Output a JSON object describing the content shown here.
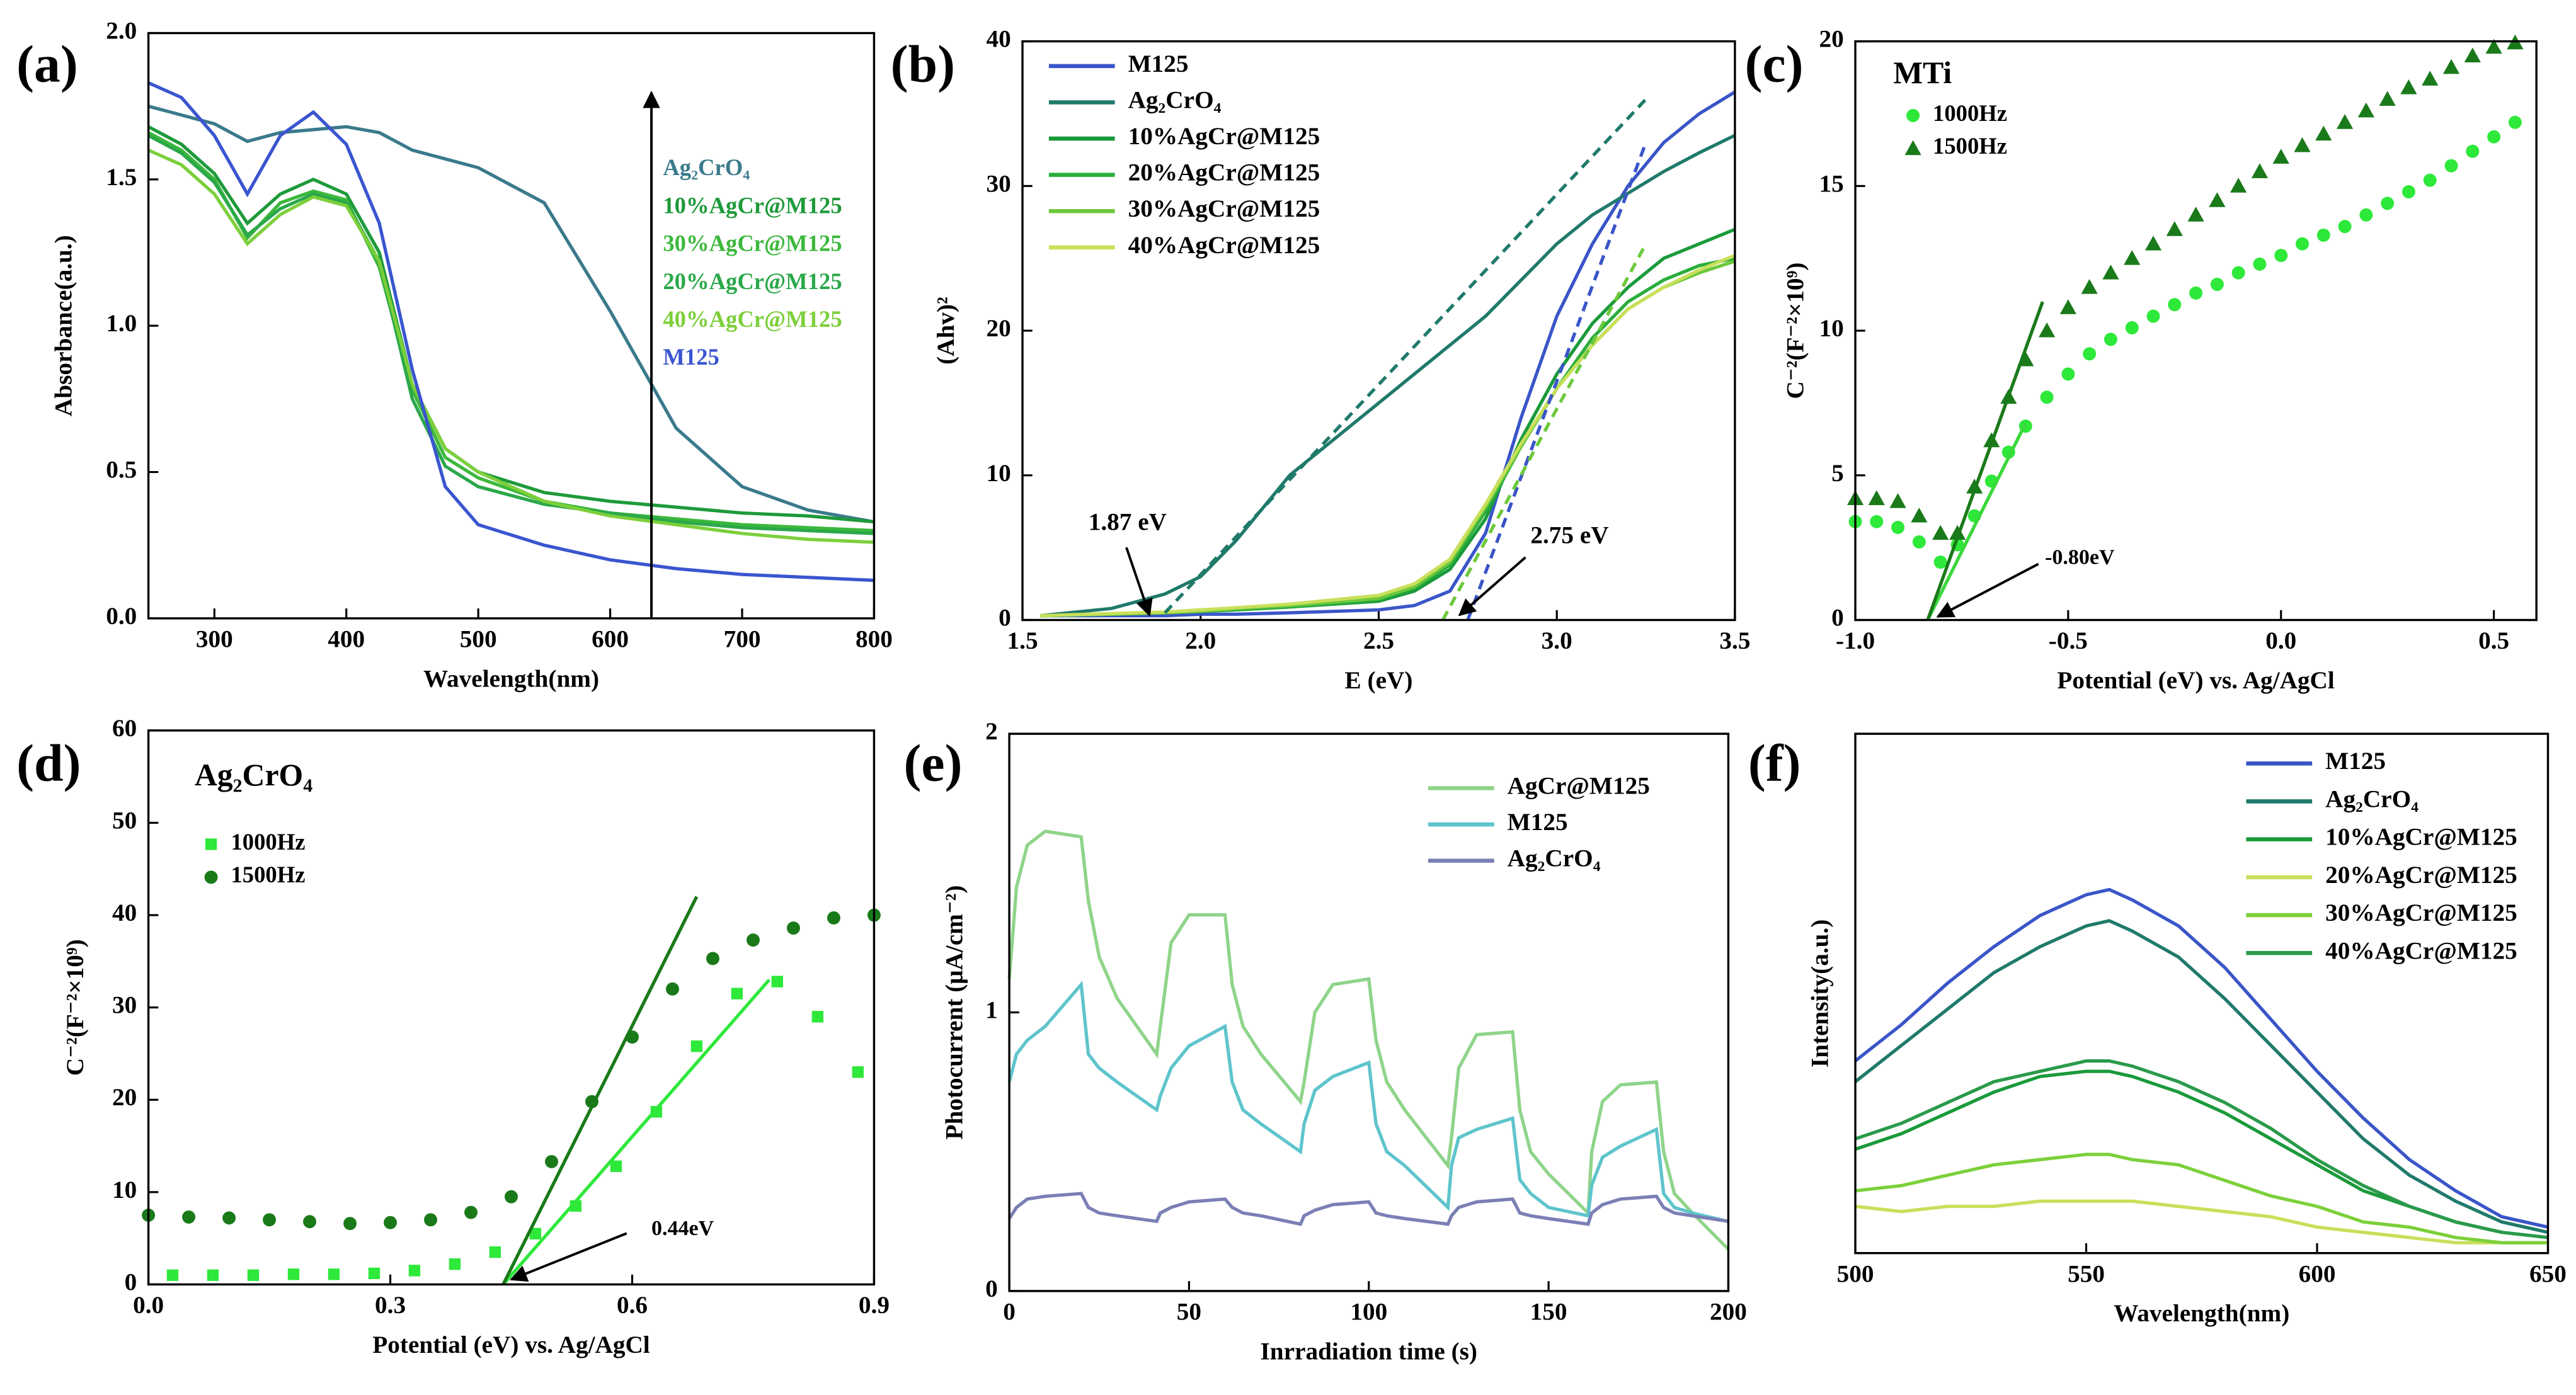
{
  "chart_data": [
    {
      "type": "line",
      "panel": "(a)",
      "xlabel": "Wavelength(nm)",
      "ylabel": "Absorbance(a.u.)",
      "xlim": [
        250,
        800
      ],
      "xticks": [
        300,
        400,
        500,
        600,
        700,
        800
      ],
      "ylim": [
        0,
        2
      ],
      "yticks": [
        {
          "value": 0,
          "label": "0.0"
        },
        0.5,
        {
          "value": 1,
          "label": "1.0"
        },
        1.5,
        {
          "value": 2,
          "label": "2.0"
        }
      ],
      "x": [
        250,
        275,
        300,
        325,
        350,
        375,
        400,
        425,
        450,
        475,
        500,
        550,
        600,
        650,
        700,
        750,
        800
      ],
      "series": [
        {
          "name": "Ag₂CrO₄",
          "color": "#3a7a8c",
          "values": [
            1.75,
            1.72,
            1.69,
            1.63,
            1.66,
            1.67,
            1.68,
            1.66,
            1.6,
            1.57,
            1.54,
            1.42,
            1.05,
            0.65,
            0.45,
            0.37,
            0.33
          ]
        },
        {
          "name": "10%AgCr@M125",
          "color": "#1e9a3a",
          "values": [
            1.68,
            1.62,
            1.52,
            1.35,
            1.45,
            1.5,
            1.45,
            1.25,
            0.8,
            0.58,
            0.5,
            0.43,
            0.4,
            0.38,
            0.36,
            0.35,
            0.33
          ]
        },
        {
          "name": "30%AgCr@M125",
          "color": "#3cb83c",
          "values": [
            1.66,
            1.6,
            1.5,
            1.3,
            1.42,
            1.46,
            1.43,
            1.2,
            0.78,
            0.55,
            0.48,
            0.4,
            0.36,
            0.34,
            0.32,
            0.31,
            0.3
          ]
        },
        {
          "name": "20%AgCr@M125",
          "color": "#2aa84a",
          "values": [
            1.65,
            1.59,
            1.49,
            1.31,
            1.4,
            1.45,
            1.42,
            1.22,
            0.75,
            0.52,
            0.45,
            0.39,
            0.36,
            0.33,
            0.31,
            0.3,
            0.29
          ]
        },
        {
          "name": "40%AgCr@M125",
          "color": "#7ccf3a",
          "values": [
            1.6,
            1.55,
            1.45,
            1.28,
            1.38,
            1.44,
            1.41,
            1.22,
            0.8,
            0.58,
            0.5,
            0.4,
            0.35,
            0.32,
            0.29,
            0.27,
            0.26
          ]
        },
        {
          "name": "M125",
          "color": "#3a55d0",
          "values": [
            1.83,
            1.78,
            1.65,
            1.45,
            1.65,
            1.73,
            1.62,
            1.35,
            0.85,
            0.45,
            0.32,
            0.25,
            0.2,
            0.17,
            0.15,
            0.14,
            0.13
          ]
        }
      ]
    },
    {
      "type": "line",
      "panel": "(b)",
      "xlabel": "E (eV)",
      "ylabel": "(Ahv)²",
      "xlim": [
        1.5,
        3.5
      ],
      "xticks": [
        1.5,
        {
          "value": 2,
          "label": "2.0"
        },
        2.5,
        {
          "value": 3,
          "label": "3.0"
        },
        3.5
      ],
      "ylim": [
        0,
        40
      ],
      "yticks": [
        0,
        10,
        20,
        30,
        40
      ],
      "x": [
        1.55,
        1.75,
        1.9,
        2.0,
        2.1,
        2.25,
        2.5,
        2.6,
        2.7,
        2.8,
        2.9,
        3.0,
        3.1,
        3.2,
        3.3,
        3.4,
        3.5
      ],
      "series": [
        {
          "name": "M125",
          "color": "#3a55c8",
          "values": [
            0.3,
            0.3,
            0.3,
            0.4,
            0.4,
            0.5,
            0.7,
            1,
            2,
            6,
            14,
            21,
            26,
            30,
            33,
            35,
            36.5
          ]
        },
        {
          "name": "Ag₂CrO₄",
          "color": "#1f7a6a",
          "values": [
            0.3,
            0.8,
            1.8,
            3,
            5.5,
            10,
            15,
            17,
            19,
            21,
            23.5,
            26,
            28,
            29.5,
            31,
            32.3,
            33.5
          ]
        },
        {
          "name": "10%AgCr@M125",
          "color": "#1a9a3a",
          "values": [
            0.3,
            0.4,
            0.5,
            0.6,
            0.7,
            0.9,
            1.3,
            2,
            3.5,
            7,
            12.5,
            17,
            20.5,
            23,
            25,
            26,
            27
          ]
        },
        {
          "name": "20%AgCr@M125",
          "color": "#2aae3c",
          "values": [
            0.3,
            0.4,
            0.5,
            0.6,
            0.7,
            0.9,
            1.4,
            2.2,
            3.8,
            7.5,
            12,
            16,
            19.5,
            22,
            23.5,
            24.5,
            25
          ]
        },
        {
          "name": "30%AgCr@M125",
          "color": "#6cc83c",
          "values": [
            0.3,
            0.4,
            0.5,
            0.6,
            0.8,
            1,
            1.5,
            2.3,
            4,
            7.8,
            12,
            16,
            19,
            21.5,
            23,
            24,
            24.8
          ]
        },
        {
          "name": "40%AgCr@M125",
          "color": "#c8e05a",
          "values": [
            0.3,
            0.45,
            0.55,
            0.7,
            0.85,
            1.1,
            1.7,
            2.5,
            4.2,
            8,
            12.2,
            16,
            19,
            21.5,
            23,
            24.2,
            25.2
          ]
        }
      ],
      "fits": [
        {
          "color": "#1f7a6a",
          "linestyle": "dashed",
          "x": [
            1.9,
            3.25
          ],
          "values": [
            0.5,
            36
          ]
        },
        {
          "color": "#3a55c8",
          "linestyle": "dashed",
          "x": [
            2.75,
            3.25
          ],
          "values": [
            0,
            33
          ]
        },
        {
          "color": "#6cc83c",
          "linestyle": "dashed",
          "x": [
            2.68,
            3.25
          ],
          "values": [
            0,
            26
          ]
        }
      ],
      "annotations": [
        "1.87 eV",
        "2.75 eV"
      ]
    },
    {
      "type": "scatter",
      "panel": "(c)",
      "title": "MTi",
      "xlabel": "Potential (eV) vs. Ag/AgCl",
      "ylabel": "C⁻²(F⁻²×10⁹)",
      "xlim": [
        -1,
        0.6
      ],
      "xticks": [
        {
          "value": -1,
          "label": "-1.0"
        },
        -0.5,
        {
          "value": 0,
          "label": "0.0"
        },
        0.5
      ],
      "ylim": [
        0,
        20
      ],
      "yticks": [
        0,
        5,
        10,
        15,
        20
      ],
      "series": [
        {
          "name": "1000Hz",
          "color": "#2ee83a",
          "marker": "circle",
          "x": [
            -1,
            -0.95,
            -0.9,
            -0.85,
            -0.8,
            -0.76,
            -0.72,
            -0.68,
            -0.64,
            -0.6,
            -0.55,
            -0.5,
            -0.45,
            -0.4,
            -0.35,
            -0.3,
            -0.25,
            -0.2,
            -0.15,
            -0.1,
            -0.05,
            0,
            0.05,
            0.1,
            0.15,
            0.2,
            0.25,
            0.3,
            0.35,
            0.4,
            0.45,
            0.5,
            0.55
          ],
          "values": [
            3.4,
            3.4,
            3.2,
            2.7,
            2,
            2.6,
            3.6,
            4.8,
            5.8,
            6.7,
            7.7,
            8.5,
            9.2,
            9.7,
            10.1,
            10.5,
            10.9,
            11.3,
            11.6,
            12,
            12.3,
            12.6,
            13,
            13.3,
            13.6,
            14,
            14.4,
            14.8,
            15.2,
            15.7,
            16.2,
            16.7,
            17.2
          ]
        },
        {
          "name": "1500Hz",
          "color": "#1a7a1a",
          "marker": "triangle",
          "x": [
            -1,
            -0.95,
            -0.9,
            -0.85,
            -0.8,
            -0.76,
            -0.72,
            -0.68,
            -0.64,
            -0.6,
            -0.55,
            -0.5,
            -0.45,
            -0.4,
            -0.35,
            -0.3,
            -0.25,
            -0.2,
            -0.15,
            -0.1,
            -0.05,
            0,
            0.05,
            0.1,
            0.15,
            0.2,
            0.25,
            0.3,
            0.35,
            0.4,
            0.45,
            0.5,
            0.55
          ],
          "values": [
            4.2,
            4.2,
            4.1,
            3.6,
            3,
            3,
            4.6,
            6.2,
            7.7,
            9,
            10,
            10.8,
            11.5,
            12,
            12.5,
            13,
            13.5,
            14,
            14.5,
            15,
            15.5,
            16,
            16.4,
            16.8,
            17.2,
            17.6,
            18,
            18.4,
            18.7,
            19.1,
            19.5,
            19.8,
            19.95
          ]
        }
      ],
      "fits": [
        {
          "color": "#3ad83a",
          "linestyle": "solid",
          "x": [
            -0.83,
            -0.6
          ],
          "values": [
            0,
            6.8
          ]
        },
        {
          "color": "#1a7a1a",
          "linestyle": "solid",
          "x": [
            -0.83,
            -0.56
          ],
          "values": [
            0,
            11
          ]
        }
      ],
      "annotations": [
        "-0.80eV"
      ]
    },
    {
      "type": "scatter",
      "panel": "(d)",
      "title": "Ag₂CrO₄",
      "xlabel": "Potential (eV) vs. Ag/AgCl",
      "ylabel": "C⁻²(F⁻²×10⁹)",
      "xlim": [
        0,
        0.9
      ],
      "xticks": [
        {
          "value": 0,
          "label": "0.0"
        },
        0.3,
        0.6,
        0.9
      ],
      "ylim": [
        0,
        60
      ],
      "yticks": [
        0,
        10,
        20,
        30,
        40,
        50,
        60
      ],
      "series": [
        {
          "name": "1000Hz",
          "color": "#2ee83a",
          "marker": "square",
          "x": [
            0.03,
            0.08,
            0.13,
            0.18,
            0.23,
            0.28,
            0.33,
            0.38,
            0.43,
            0.48,
            0.53,
            0.58,
            0.63,
            0.68,
            0.73,
            0.78,
            0.83,
            0.88
          ],
          "values": [
            1,
            1,
            1,
            1.1,
            1.1,
            1.2,
            1.5,
            2.2,
            3.5,
            5.5,
            8.5,
            12.8,
            18.7,
            25.8,
            31.5,
            32.8,
            29,
            23
          ]
        },
        {
          "name": "1500Hz",
          "color": "#1a7a1a",
          "marker": "circle",
          "x": [
            0,
            0.05,
            0.1,
            0.15,
            0.2,
            0.25,
            0.3,
            0.35,
            0.4,
            0.45,
            0.5,
            0.55,
            0.6,
            0.65,
            0.7,
            0.75,
            0.8,
            0.85,
            0.9
          ],
          "values": [
            7.5,
            7.3,
            7.2,
            7,
            6.8,
            6.6,
            6.7,
            7,
            7.8,
            9.5,
            13.3,
            19.8,
            26.8,
            32,
            35.3,
            37.3,
            38.6,
            39.7,
            40
          ]
        }
      ],
      "fits": [
        {
          "color": "#2ee83a",
          "linestyle": "solid",
          "x": [
            0.44,
            0.77
          ],
          "values": [
            0,
            33
          ]
        },
        {
          "color": "#1a7a1a",
          "linestyle": "solid",
          "x": [
            0.44,
            0.68
          ],
          "values": [
            0,
            42
          ]
        }
      ],
      "annotations": [
        "0.44eV"
      ]
    },
    {
      "type": "line",
      "panel": "(e)",
      "xlabel": "Inrradiation time (s)",
      "ylabel": "Photocurrent (μA/cm⁻²)",
      "xlim": [
        0,
        200
      ],
      "xticks": [
        0,
        50,
        100,
        150,
        200
      ],
      "ylim": [
        0,
        2
      ],
      "yticks": [
        0,
        1,
        2
      ],
      "x": [
        0,
        2,
        5,
        10,
        20,
        22,
        25,
        30,
        41,
        42,
        45,
        50,
        60,
        62,
        65,
        70,
        81,
        82,
        85,
        90,
        100,
        102,
        105,
        110,
        122,
        123,
        125,
        130,
        140,
        142,
        145,
        150,
        161,
        162,
        165,
        170,
        180,
        182,
        185,
        190,
        200
      ],
      "series": [
        {
          "name": "AgCr@M125",
          "color": "#8fd48a",
          "values": [
            1.12,
            1.45,
            1.6,
            1.65,
            1.63,
            1.4,
            1.2,
            1.05,
            0.85,
            0.95,
            1.25,
            1.35,
            1.35,
            1.1,
            0.95,
            0.85,
            0.68,
            0.75,
            1,
            1.1,
            1.12,
            0.9,
            0.75,
            0.65,
            0.45,
            0.55,
            0.8,
            0.92,
            0.93,
            0.65,
            0.5,
            0.42,
            0.28,
            0.5,
            0.68,
            0.74,
            0.75,
            0.5,
            0.35,
            0.28,
            0.15
          ]
        },
        {
          "name": "M125",
          "color": "#5ec4cc",
          "values": [
            0.75,
            0.85,
            0.9,
            0.95,
            1.1,
            0.85,
            0.8,
            0.75,
            0.65,
            0.7,
            0.8,
            0.88,
            0.95,
            0.75,
            0.65,
            0.6,
            0.5,
            0.6,
            0.72,
            0.77,
            0.82,
            0.6,
            0.5,
            0.45,
            0.3,
            0.45,
            0.55,
            0.58,
            0.62,
            0.4,
            0.35,
            0.3,
            0.27,
            0.38,
            0.48,
            0.52,
            0.58,
            0.35,
            0.3,
            0.28,
            0.25
          ]
        },
        {
          "name": "Ag₂CrO₄",
          "color": "#7a7fb5",
          "values": [
            0.26,
            0.3,
            0.33,
            0.34,
            0.35,
            0.3,
            0.28,
            0.27,
            0.25,
            0.28,
            0.3,
            0.32,
            0.33,
            0.3,
            0.28,
            0.27,
            0.24,
            0.27,
            0.29,
            0.31,
            0.32,
            0.28,
            0.27,
            0.26,
            0.24,
            0.27,
            0.3,
            0.32,
            0.33,
            0.28,
            0.27,
            0.26,
            0.24,
            0.28,
            0.31,
            0.33,
            0.34,
            0.3,
            0.28,
            0.27,
            0.25
          ]
        }
      ]
    },
    {
      "type": "line",
      "panel": "(f)",
      "xlabel": "Wavelength(nm)",
      "ylabel": "Intensity(a.u.)",
      "xlim": [
        500,
        650
      ],
      "xticks": [
        500,
        550,
        600,
        650
      ],
      "ylim": [
        0,
        100
      ],
      "x": [
        500,
        510,
        520,
        530,
        540,
        550,
        555,
        560,
        570,
        580,
        590,
        600,
        610,
        620,
        630,
        640,
        650
      ],
      "series": [
        {
          "name": "M125",
          "color": "#3a55c8",
          "values": [
            37,
            44,
            52,
            59,
            65,
            69,
            70,
            68,
            63,
            55,
            45,
            35,
            26,
            18,
            12,
            7,
            5
          ]
        },
        {
          "name": "Ag₂CrO₄",
          "color": "#1f7a6a",
          "values": [
            33,
            40,
            47,
            54,
            59,
            63,
            64,
            62,
            57,
            49,
            40,
            31,
            22,
            15,
            10,
            6,
            4
          ]
        },
        {
          "name": "10%AgCr@M125",
          "color": "#1a9a3a",
          "values": [
            20,
            23,
            27,
            31,
            34,
            35,
            35,
            34,
            31,
            27,
            22,
            17,
            12,
            9,
            6,
            4,
            3
          ]
        },
        {
          "name": "20%AgCr@M125",
          "color": "#c8e05a",
          "values": [
            9,
            8,
            9,
            9,
            10,
            10,
            10,
            10,
            9,
            8,
            7,
            5,
            4,
            3,
            2,
            2,
            2
          ]
        },
        {
          "name": "30%AgCr@M125",
          "color": "#7cd03a",
          "values": [
            12,
            13,
            15,
            17,
            18,
            19,
            19,
            18,
            17,
            14,
            11,
            9,
            6,
            5,
            3,
            2,
            2
          ]
        },
        {
          "name": "40%AgCr@M125",
          "color": "#2a9a4a",
          "values": [
            22,
            25,
            29,
            33,
            35,
            37,
            37,
            36,
            33,
            29,
            24,
            18,
            13,
            9,
            6,
            4,
            3
          ]
        }
      ]
    }
  ]
}
